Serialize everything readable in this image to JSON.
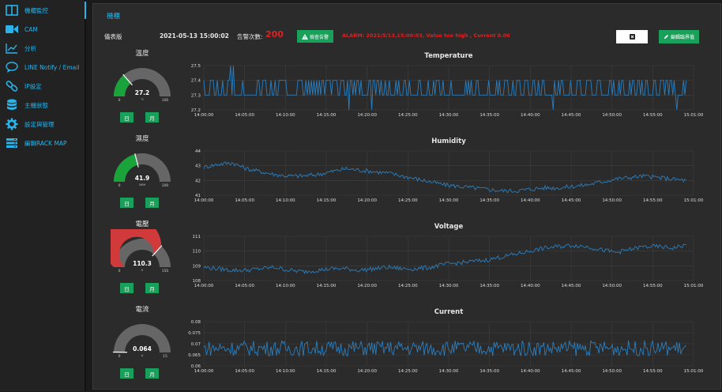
{
  "sidebar": {
    "items": [
      {
        "label": "機櫃監控",
        "icon": "columns-icon"
      },
      {
        "label": "CAM",
        "icon": "video-camera-icon"
      },
      {
        "label": "分析",
        "icon": "line-chart-icon"
      },
      {
        "label": "LINE Notify / Email",
        "icon": "chat-bubble-icon"
      },
      {
        "label": "IP設定",
        "icon": "link-icon"
      },
      {
        "label": "主機狀態",
        "icon": "database-icon"
      },
      {
        "label": "設定與管理",
        "icon": "gear-icon"
      },
      {
        "label": "編輯RACK MAP",
        "icon": "server-rack-icon"
      }
    ]
  },
  "panel": {
    "title": "機櫃",
    "dashboard_label": "儀表版",
    "datetime": "2021-05-13 15:00:02",
    "alarm_count_label": "告警次數:",
    "alarm_count": "200",
    "check_alarm_button": "檢查告警",
    "alarm_message": "ALARM: 2021/5/13,15:00:03, Value too high , Current 0.06",
    "edit_threshold_button": "編輯臨界值"
  },
  "gauges": [
    {
      "title": "溫度",
      "value": "27.2",
      "unit": "°C",
      "min": "0",
      "max": "100",
      "fraction": 0.272,
      "color": "#19a33a",
      "day": "日",
      "month": "月"
    },
    {
      "title": "濕度",
      "value": "41.9",
      "unit": "%RH",
      "min": "0",
      "max": "100",
      "fraction": 0.419,
      "color": "#19a33a",
      "day": "日",
      "month": "月"
    },
    {
      "title": "電壓",
      "value": "110.3",
      "unit": "V",
      "min": "0",
      "max": "150",
      "fraction": 0.735,
      "color": "#d13a3a",
      "day": "日",
      "month": "月"
    },
    {
      "title": "電流",
      "value": "0.064",
      "unit": "A",
      "min": "0",
      "max": "15",
      "fraction": 0.004,
      "color": "#19a33a",
      "day": "日",
      "month": "月"
    }
  ],
  "colors": {
    "accent": "#2ab3ea",
    "green": "#19a05a",
    "alarm": "#e02020",
    "line": "#2a7fc0"
  },
  "chart_data": [
    {
      "type": "line",
      "title": "Temperature",
      "x_start": "14:00:00",
      "x_end": "15:01:00",
      "ylim": [
        27.2,
        27.5
      ],
      "yticks": [
        "27.5",
        "27.4",
        "27.3",
        "27.2"
      ],
      "grid": true,
      "base": [
        27.3,
        27.4
      ],
      "noise": 0
    },
    {
      "type": "line",
      "title": "Humidity",
      "x_start": "14:00:00",
      "x_end": "15:01:00",
      "ylim": [
        41,
        44
      ],
      "yticks": [
        "44",
        "43",
        "42",
        "41"
      ],
      "grid": true,
      "base": [
        42.9,
        43.1,
        43.2,
        42.8,
        42.6,
        42.4,
        42.3,
        42.3,
        42.4,
        42.6,
        42.8,
        42.7,
        42.6,
        42.5,
        42.3,
        42.1,
        41.9,
        41.7,
        41.6,
        41.5,
        41.4,
        41.3,
        41.3,
        41.4,
        41.5,
        41.5,
        41.6,
        41.7,
        41.9,
        42.1,
        42.2,
        42.3,
        42.2,
        42.1,
        42.0
      ],
      "noise": 0.15
    },
    {
      "type": "line",
      "title": "Voltage",
      "x_start": "14:00:00",
      "x_end": "15:01:00",
      "ylim": [
        108,
        111
      ],
      "yticks": [
        "111",
        "110",
        "109",
        "108"
      ],
      "grid": true,
      "base": [
        108.9,
        108.8,
        108.7,
        108.7,
        108.8,
        108.9,
        108.7,
        108.6,
        108.7,
        108.8,
        108.8,
        108.7,
        108.8,
        108.9,
        108.8,
        108.8,
        108.9,
        109.1,
        109.2,
        109.3,
        109.4,
        109.6,
        109.8,
        110.0,
        110.2,
        110.3,
        110.4,
        110.3,
        110.1,
        109.9,
        110.1,
        110.3,
        110.3,
        110.2,
        110.4
      ],
      "noise": 0.15
    },
    {
      "type": "line",
      "title": "Current",
      "x_start": "14:00:00",
      "x_end": "15:01:00",
      "ylim": [
        0.06,
        0.08
      ],
      "yticks": [
        "0.08",
        "0.075",
        "0.07",
        "0.065",
        "0.06"
      ],
      "grid": true,
      "base": [
        0.068,
        0.068
      ],
      "noise": 0.0035
    }
  ],
  "x_ticks": [
    "14:00:00",
    "14:05:00",
    "14:10:00",
    "14:15:00",
    "14:20:00",
    "14:25:00",
    "14:30:00",
    "14:35:00",
    "14:40:00",
    "14:45:00",
    "14:50:00",
    "14:55:00",
    "15:01:00"
  ]
}
